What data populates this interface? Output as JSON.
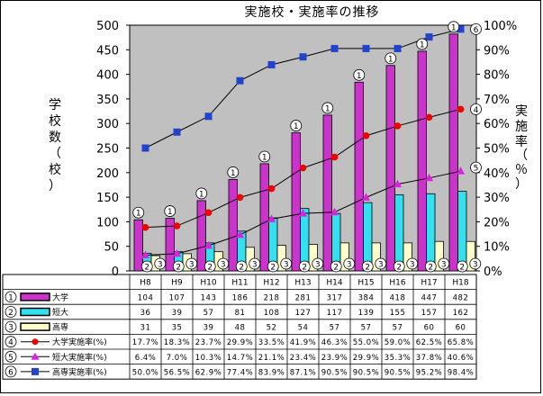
{
  "chart_data": {
    "type": "bar",
    "title": "実施校・実施率の推移",
    "ylabel_left": [
      "学",
      "校",
      "数",
      "（",
      "校",
      "）"
    ],
    "ylabel_right": [
      "実",
      "施",
      "率",
      "（",
      "％",
      "）"
    ],
    "ylim_left": [
      0,
      500
    ],
    "ylim_right": [
      0,
      100
    ],
    "yticks_left": [
      "0",
      "50",
      "100",
      "150",
      "200",
      "250",
      "300",
      "350",
      "400",
      "450",
      "500"
    ],
    "yticks_right": [
      "0%",
      "10%",
      "20%",
      "30%",
      "40%",
      "50%",
      "60%",
      "70%",
      "80%",
      "90%",
      "100%"
    ],
    "categories": [
      "H8",
      "H9",
      "H10",
      "H11",
      "H12",
      "H13",
      "H14",
      "H15",
      "H16",
      "H17",
      "H18"
    ],
    "bar_series": [
      {
        "marker": "①",
        "name": "大学",
        "color": "#cc33cc",
        "values": [
          104,
          107,
          143,
          186,
          218,
          281,
          317,
          384,
          418,
          447,
          482
        ]
      },
      {
        "marker": "②",
        "name": "短大",
        "color": "#33e0f0",
        "values": [
          36,
          39,
          57,
          81,
          108,
          127,
          117,
          139,
          155,
          157,
          162
        ]
      },
      {
        "marker": "③",
        "name": "高専",
        "color": "#ffffcc",
        "values": [
          31,
          35,
          39,
          48,
          52,
          54,
          57,
          57,
          57,
          60,
          60
        ]
      }
    ],
    "line_series": [
      {
        "marker": "④",
        "name": "大学実施率(%)",
        "color": "#ee0000",
        "marker_shape": "circle",
        "values": [
          17.7,
          18.3,
          23.7,
          29.9,
          33.5,
          41.9,
          46.3,
          55.0,
          59.0,
          62.5,
          65.8
        ],
        "labels": [
          "17.7%",
          "18.3%",
          "23.7%",
          "29.9%",
          "33.5%",
          "41.9%",
          "46.3%",
          "55.0%",
          "59.0%",
          "62.5%",
          "65.8%"
        ]
      },
      {
        "marker": "⑤",
        "name": "短大実施率(%)",
        "color": "#dd22dd",
        "marker_shape": "triangle",
        "values": [
          6.4,
          7.0,
          10.3,
          14.7,
          21.1,
          23.4,
          23.9,
          29.9,
          35.3,
          37.8,
          40.6
        ],
        "labels": [
          "6.4%",
          "7.0%",
          "10.3%",
          "14.7%",
          "21.1%",
          "23.4%",
          "23.9%",
          "29.9%",
          "35.3%",
          "37.8%",
          "40.6%"
        ]
      },
      {
        "marker": "⑥",
        "name": "高専実施率(%)",
        "color": "#2244cc",
        "marker_shape": "square",
        "values": [
          50.0,
          56.5,
          62.9,
          77.4,
          83.9,
          87.1,
          90.5,
          90.5,
          90.5,
          95.2,
          98.4
        ],
        "labels": [
          "50.0%",
          "56.5%",
          "62.9%",
          "77.4%",
          "83.9%",
          "87.1%",
          "90.5%",
          "90.5%",
          "90.5%",
          "95.2%",
          "98.4%"
        ]
      }
    ],
    "grid": false,
    "plot_background": "#c0c0c0",
    "legend_placement": "table-below"
  }
}
